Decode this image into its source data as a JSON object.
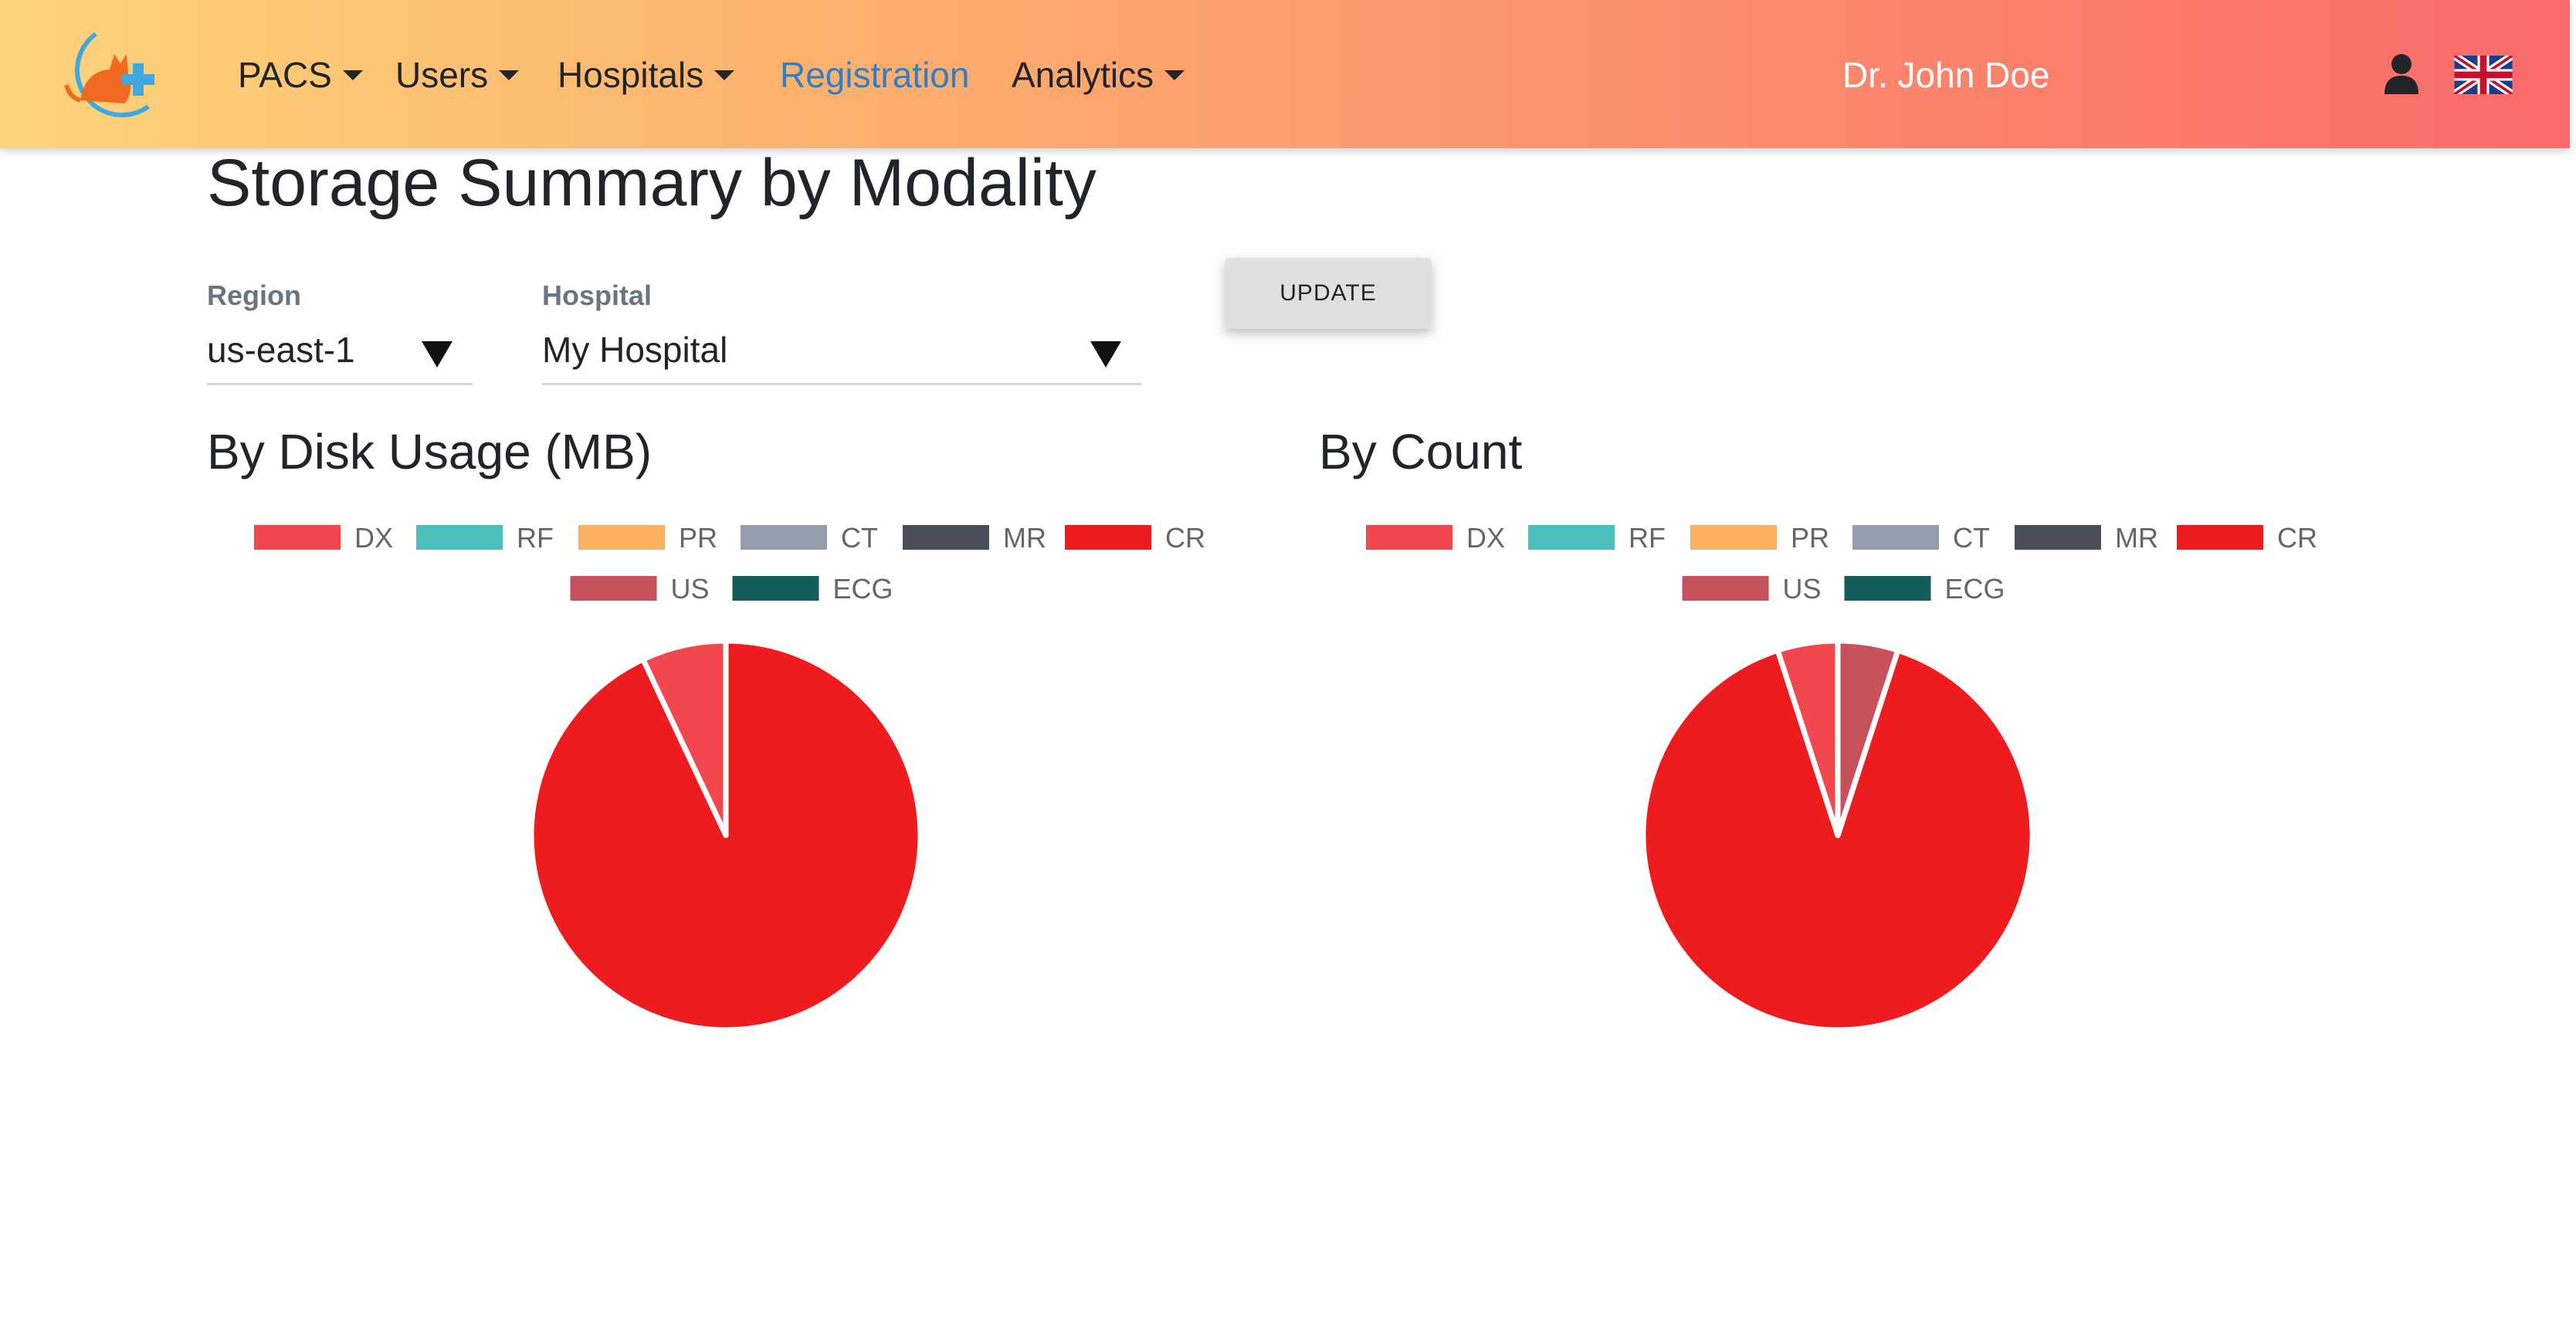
{
  "header": {
    "nav": [
      {
        "label": "PACS",
        "dropdown": true
      },
      {
        "label": "Users",
        "dropdown": true
      },
      {
        "label": "Hospitals",
        "dropdown": true
      },
      {
        "label": "Registration",
        "dropdown": false,
        "active": true
      },
      {
        "label": "Analytics",
        "dropdown": true
      }
    ],
    "user_name": "Dr. John Doe",
    "icons": {
      "logo": "cat-medical-cross-logo",
      "user": "user-icon",
      "language": "uk-flag-icon"
    }
  },
  "main": {
    "title": "Storage Summary by Modality",
    "filters": {
      "region": {
        "label": "Region",
        "value": "us-east-1"
      },
      "hospital": {
        "label": "Hospital",
        "value": "My Hospital"
      }
    },
    "update_label": "UPDATE"
  },
  "colors": {
    "DX": "#f2474f",
    "RF": "#4bbfbc",
    "PR": "#fbb05f",
    "CT": "#939dab",
    "MR": "#4b4f5b",
    "CR": "#ee1c1f",
    "US": "#c8515e",
    "ECG": "#135d5a"
  },
  "chart_data": [
    {
      "type": "pie",
      "title": "By Disk Usage (MB)",
      "legend_position": "top",
      "categories": [
        "DX",
        "RF",
        "PR",
        "CT",
        "MR",
        "CR",
        "US",
        "ECG"
      ],
      "values": [
        7,
        0,
        0,
        0,
        0,
        93,
        0,
        0
      ]
    },
    {
      "type": "pie",
      "title": "By Count",
      "legend_position": "top",
      "categories": [
        "DX",
        "RF",
        "PR",
        "CT",
        "MR",
        "CR",
        "US",
        "ECG"
      ],
      "values": [
        5,
        0,
        0,
        0,
        0,
        90,
        5,
        0
      ]
    }
  ]
}
